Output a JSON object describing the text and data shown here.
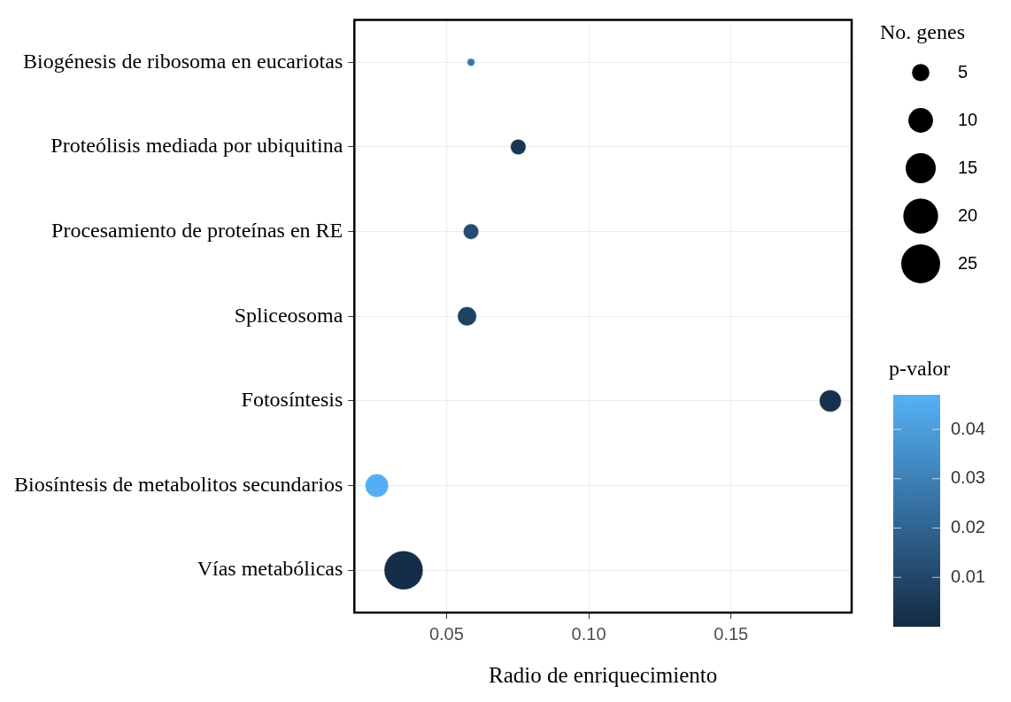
{
  "chart_data": {
    "type": "bubble",
    "orientation": "horizontal",
    "xlabel": "Radio de enriquecimiento",
    "legend_title": "No. genes",
    "clabel": "p-valor",
    "categories": [
      "Biogénesis de ribosoma en eucariotas",
      "Proteólisis mediada por ubiquitina",
      "Procesamiento de proteínas en RE",
      "Spliceosoma",
      "Fotosíntesis",
      "Biosíntesis de metabolitos secundarios",
      "Vías metabólicas"
    ],
    "values": [
      0.0586,
      0.0752,
      0.0586,
      0.0572,
      0.1849,
      0.0255,
      0.0349
    ],
    "sizes": [
      1,
      4,
      4,
      6,
      8,
      9,
      25
    ],
    "size_legend": [
      5,
      10,
      15,
      20,
      25
    ],
    "cvalues": [
      0.027,
      0.004,
      0.012,
      0.008,
      0.002,
      0.046,
      0.001
    ],
    "clim": [
      0,
      0.047
    ],
    "cticks": [
      0.01,
      0.02,
      0.03,
      0.04
    ],
    "xlim": [
      0.0176,
      0.1924
    ],
    "xticks": [
      {
        "value": 0.05,
        "label": "0.05"
      },
      {
        "value": 0.1,
        "label": "0.10"
      },
      {
        "value": 0.15,
        "label": "0.15"
      }
    ],
    "grid": true
  }
}
